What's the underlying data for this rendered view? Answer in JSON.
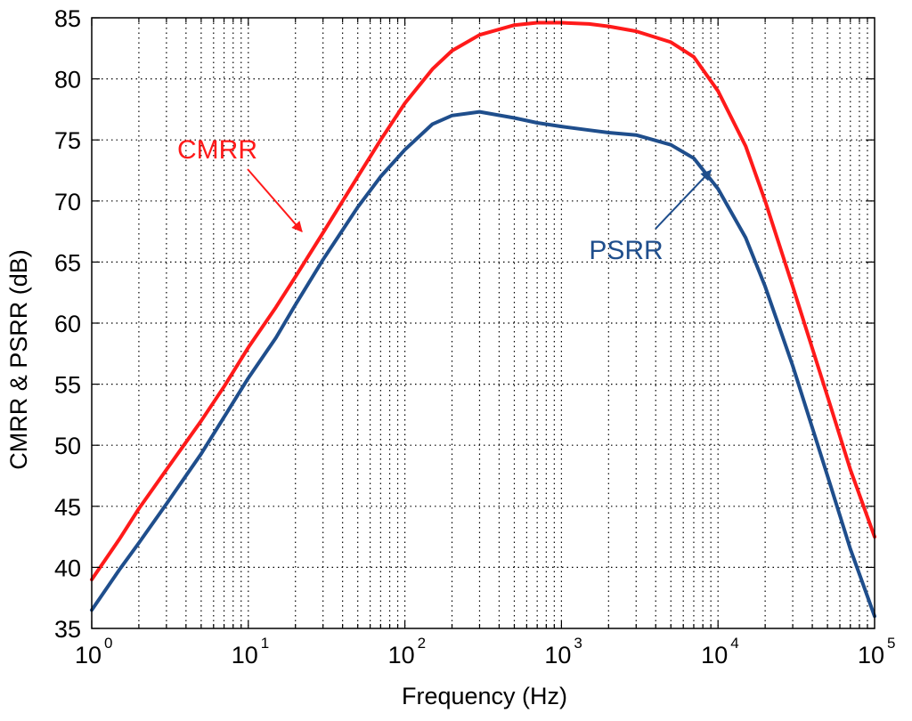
{
  "chart_data": {
    "type": "line",
    "title": "",
    "xlabel": "Frequency (Hz)",
    "ylabel": "CMRR & PSRR (dB)",
    "xscale": "log",
    "xlim": [
      1,
      100000
    ],
    "ylim": [
      35,
      85
    ],
    "grid": true,
    "y_ticks": [
      35,
      40,
      45,
      50,
      55,
      60,
      65,
      70,
      75,
      80,
      85
    ],
    "y_tick_labels": [
      "35",
      "40",
      "45",
      "50",
      "55",
      "60",
      "65",
      "70",
      "75",
      "80",
      "85"
    ],
    "x_ticks": [
      1,
      10,
      100,
      1000,
      10000,
      100000
    ],
    "x_tick_base": "10",
    "x_tick_exponents": [
      "0",
      "1",
      "2",
      "3",
      "4",
      "5"
    ],
    "series": [
      {
        "name": "CMRR",
        "color": "#ff1a1a",
        "x": [
          1,
          1.5,
          2,
          3,
          5,
          7,
          10,
          15,
          20,
          30,
          50,
          70,
          100,
          150,
          200,
          300,
          500,
          700,
          1000,
          1500,
          2000,
          3000,
          5000,
          7000,
          10000,
          15000,
          20000,
          30000,
          50000,
          70000,
          100000
        ],
        "values": [
          39.0,
          42.3,
          44.8,
          48.0,
          52.0,
          54.8,
          58.0,
          61.3,
          63.8,
          67.4,
          72.0,
          75.0,
          78.0,
          80.8,
          82.3,
          83.6,
          84.4,
          84.6,
          84.6,
          84.5,
          84.3,
          83.9,
          83.0,
          81.8,
          79.0,
          74.5,
          70.0,
          63.0,
          54.0,
          48.0,
          42.5
        ]
      },
      {
        "name": "PSRR",
        "color": "#1f4e8c",
        "x": [
          1,
          1.5,
          2,
          3,
          5,
          7,
          10,
          15,
          20,
          30,
          50,
          70,
          100,
          150,
          200,
          300,
          500,
          700,
          1000,
          1500,
          2000,
          3000,
          5000,
          7000,
          10000,
          15000,
          20000,
          30000,
          50000,
          70000,
          100000
        ],
        "values": [
          36.5,
          39.8,
          42.0,
          45.2,
          49.3,
          52.3,
          55.5,
          58.8,
          61.5,
          65.2,
          69.5,
          72.0,
          74.2,
          76.3,
          77.0,
          77.3,
          76.8,
          76.4,
          76.1,
          75.8,
          75.6,
          75.4,
          74.6,
          73.5,
          71.0,
          67.0,
          63.0,
          56.5,
          47.5,
          41.5,
          36.0
        ]
      }
    ],
    "annotations": [
      {
        "text": "CMRR",
        "series": "CMRR",
        "color": "#ff1a1a",
        "arrow_to": [
          22,
          67.5
        ]
      },
      {
        "text": "PSRR",
        "series": "PSRR",
        "color": "#1f4e8c",
        "arrow_to": [
          9000,
          72.5
        ]
      }
    ]
  }
}
